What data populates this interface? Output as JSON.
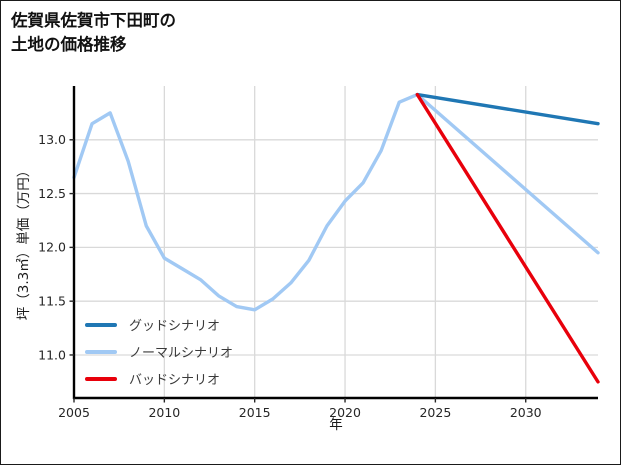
{
  "page": {
    "title_line1": "佐賀県佐賀市下田町の",
    "title_line2": "土地の価格推移"
  },
  "chart_data": {
    "type": "line",
    "title": "佐賀県佐賀市下田町の土地の価格推移",
    "xlabel": "年",
    "ylabel": "坪（3.3㎡）単価（万円）",
    "grid": true,
    "legend_position": "lower left",
    "xlim": [
      2005,
      2034
    ],
    "ylim": [
      10.6,
      13.5
    ],
    "x_tick_values": [
      2005,
      2010,
      2015,
      2020,
      2025,
      2030
    ],
    "x_tick_labels": [
      "2005",
      "2010",
      "2015",
      "2020",
      "2025",
      "2030"
    ],
    "y_tick_values": [
      11.0,
      11.5,
      12.0,
      12.5,
      13.0
    ],
    "y_tick_labels": [
      "11.0",
      "11.5",
      "12.0",
      "12.5",
      "13.0"
    ],
    "series": [
      {
        "name": "グッドシナリオ",
        "color": "#1f77b4",
        "x": [
          2024,
          2034
        ],
        "y": [
          13.42,
          13.15
        ]
      },
      {
        "name": "ノーマルシナリオ",
        "color": "#a1c9f4",
        "x": [
          2005,
          2006,
          2007,
          2008,
          2009,
          2010,
          2011,
          2012,
          2013,
          2014,
          2015,
          2016,
          2017,
          2018,
          2019,
          2020,
          2021,
          2022,
          2023,
          2024,
          2034
        ],
        "y": [
          12.65,
          13.15,
          13.25,
          12.8,
          12.2,
          11.9,
          11.8,
          11.7,
          11.55,
          11.45,
          11.42,
          11.52,
          11.67,
          11.88,
          12.2,
          12.43,
          12.6,
          12.9,
          13.35,
          13.42,
          11.95
        ]
      },
      {
        "name": "バッドシナリオ",
        "color": "#e8000b",
        "x": [
          2024,
          2034
        ],
        "y": [
          13.42,
          10.75
        ]
      }
    ],
    "draw_order": [
      1,
      0,
      2
    ]
  }
}
